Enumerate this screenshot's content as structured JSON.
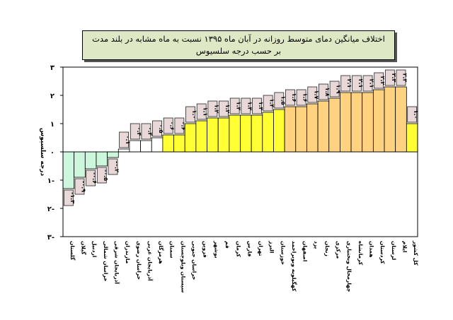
{
  "chart_data": {
    "type": "bar",
    "title": "اختلاف میانگین دمای متوسط روزانه در آبان ماه ۱۳۹۵ نسبت به ماه مشابه در بلند مدت",
    "subtitle": "بر حسب درجه سلسیوس",
    "ylabel": "درجه سلسیوس",
    "xlabel": "",
    "ylim": [
      -3,
      3
    ],
    "yticks": [
      "۳-",
      "۲-",
      "۱-",
      "۰",
      "۱",
      "۲",
      "۳"
    ],
    "ytick_values": [
      -3,
      -2,
      -1,
      0,
      1,
      2,
      3
    ],
    "categories": [
      "گلستان",
      "گیلان",
      "اردبیل",
      "خراسان شمالی",
      "آذربایجان شرقی",
      "مازندران",
      "خراسان رضوی",
      "آذربایجان غربی",
      "هرمزگان",
      "سمنان",
      "سیستان وبلوچستان",
      "خراسان جنوبی",
      "قزوین",
      "بوشهر",
      "قم",
      "کرمان",
      "فارس",
      "تهران",
      "البرز",
      "خوزستان",
      "کهگیلویه وبویراحمد",
      "اصفهان",
      "یزد",
      "زنجان",
      "مرکزی",
      "چهارمحال وبختیاری",
      "کرمانشاه",
      "همدان",
      "کردستان",
      "لرستان",
      "ایلام",
      "کل کشور"
    ],
    "values": [
      -1.3,
      -0.9,
      -0.6,
      -0.5,
      -0.2,
      0.1,
      0.4,
      0.4,
      0.5,
      0.6,
      0.6,
      1.0,
      1.1,
      1.2,
      1.2,
      1.3,
      1.3,
      1.3,
      1.4,
      1.5,
      1.6,
      1.6,
      1.7,
      1.8,
      1.9,
      2.1,
      2.1,
      2.1,
      2.2,
      2.3,
      2.3,
      1.0
    ],
    "value_labels": [
      "-۱.۳",
      "-۰.۹",
      "-۰.۶",
      "-۰.۵",
      "-۰.۲",
      "۰.۱",
      "۰.۴",
      "۰.۴",
      "۰.۵",
      "۰.۶",
      "۰.۶",
      "۱.۰",
      "۱.۱",
      "۱.۲",
      "۱.۲",
      "۱.۳",
      "۱.۳",
      "۱.۳",
      "۱.۴",
      "۱.۵",
      "۱.۶",
      "۱.۶",
      "۱.۷",
      "۱.۸",
      "۱.۹",
      "۲.۱",
      "۲.۱",
      "۲.۱",
      "۲.۲",
      "۲.۳",
      "۲.۳",
      "۱.۰"
    ],
    "colors": {
      "negative": "#ccf7dc",
      "low": "#ffffff",
      "mid": "#ffff33",
      "high": "#ffd27f",
      "overall": "#ffff33",
      "label_bg": "#e8d8d8",
      "plot_border": "#000000"
    },
    "grid": false
  }
}
